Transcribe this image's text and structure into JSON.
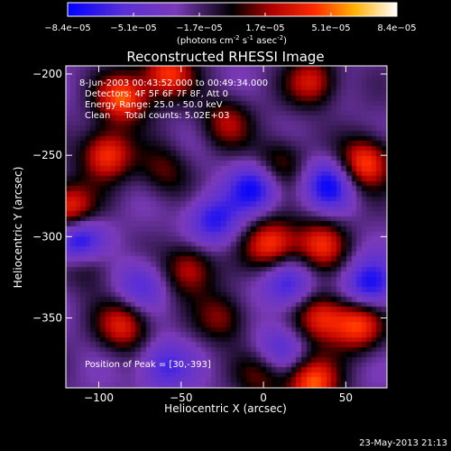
{
  "chart_data": {
    "type": "heatmap",
    "title": "Reconstructed RHESSI Image",
    "xlabel": "Heliocentric X (arcsec)",
    "ylabel": "Heliocentric Y (arcsec)",
    "xlim": [
      -120,
      75
    ],
    "ylim": [
      -393,
      -195
    ],
    "xticks": [
      -100,
      -50,
      0,
      50
    ],
    "xtick_labels": [
      "−100",
      "−50",
      "0",
      "50"
    ],
    "yticks": [
      -350,
      -300,
      -250,
      -200
    ],
    "ytick_labels": [
      "−350",
      "−300",
      "−250",
      "−200"
    ],
    "colorbar": {
      "min": -8.4e-05,
      "max": 8.4e-05,
      "tick_labels": [
        "−8.4e−05",
        "−5.1e−05",
        "−1.7e−05",
        "1.7e−05",
        "5.1e−05",
        "8.4e−05"
      ],
      "units_label": "(photons cm",
      "units_exp1": "-2",
      "units_mid": " s",
      "units_exp2": "-1",
      "units_mid2": " asec",
      "units_exp3": "-2",
      "units_end": ")",
      "colormap": "rhessi-blue-black-red-yellow-white"
    },
    "annotations": [
      "8-Jun-2003 00:43:52.000 to 00:49:34.000",
      "Detectors: 4F 5F 6F 7F 8F, Att 0",
      "Energy Range: 25.0 - 50.0 keV",
      "Clean     Total counts: 5.02E+03"
    ],
    "peak_label": "Position of Peak = [30,-393]",
    "peak_position": [
      30,
      -393
    ],
    "footer_date": "23-May-2013 21:13",
    "sources": [
      {
        "x": -85,
        "y": -215,
        "a": 1.0
      },
      {
        "x": -58,
        "y": -200,
        "a": 0.9
      },
      {
        "x": 30,
        "y": -205,
        "a": 0.75
      },
      {
        "x": -95,
        "y": -250,
        "a": 0.95
      },
      {
        "x": -118,
        "y": -283,
        "a": 0.95
      },
      {
        "x": -22,
        "y": -230,
        "a": 0.6
      },
      {
        "x": 62,
        "y": -255,
        "a": 1.0
      },
      {
        "x": 5,
        "y": -305,
        "a": 0.95
      },
      {
        "x": 35,
        "y": -305,
        "a": 0.8
      },
      {
        "x": -45,
        "y": -320,
        "a": 0.7
      },
      {
        "x": 35,
        "y": -350,
        "a": 0.85
      },
      {
        "x": -85,
        "y": -355,
        "a": 0.8
      },
      {
        "x": 58,
        "y": -355,
        "a": 0.9
      },
      {
        "x": -108,
        "y": -315,
        "a": 0.6
      },
      {
        "x": 30,
        "y": -390,
        "a": 1.0
      },
      {
        "x": 0,
        "y": -385,
        "a": 0.5
      },
      {
        "x": -60,
        "y": -260,
        "a": 0.45
      },
      {
        "x": 10,
        "y": -255,
        "a": 0.55
      },
      {
        "x": -25,
        "y": -350,
        "a": 0.55
      },
      {
        "x": -112,
        "y": -304,
        "a": -1.1
      },
      {
        "x": -5,
        "y": -270,
        "a": -0.8
      },
      {
        "x": 40,
        "y": -268,
        "a": -0.8
      },
      {
        "x": -30,
        "y": -290,
        "a": -0.7
      },
      {
        "x": 65,
        "y": -330,
        "a": -0.8
      },
      {
        "x": -60,
        "y": -380,
        "a": -0.6
      },
      {
        "x": 15,
        "y": -330,
        "a": -0.65
      },
      {
        "x": 10,
        "y": -370,
        "a": -0.5
      },
      {
        "x": -75,
        "y": -330,
        "a": -0.5
      }
    ]
  }
}
